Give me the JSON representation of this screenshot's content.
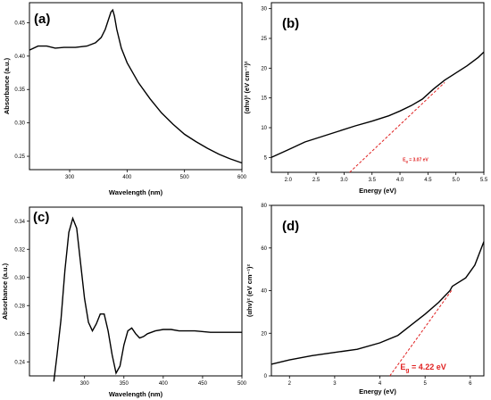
{
  "chart_data": [
    {
      "panel_label": "(a)",
      "type": "line",
      "xlabel": "Wavelength (nm)",
      "ylabel": "Absorbance (a.u.)",
      "xlim": [
        230,
        600
      ],
      "ylim": [
        0.23,
        0.48
      ],
      "xticks": [
        "300",
        "400",
        "500",
        "600"
      ],
      "yticks": [
        "0.25",
        "0.30",
        "0.35",
        "0.40",
        "0.45"
      ],
      "x": [
        230,
        245,
        260,
        275,
        290,
        310,
        330,
        345,
        355,
        362,
        368,
        372,
        375,
        378,
        382,
        390,
        400,
        420,
        440,
        460,
        480,
        500,
        520,
        540,
        560,
        580,
        600
      ],
      "y": [
        0.409,
        0.415,
        0.415,
        0.412,
        0.413,
        0.413,
        0.415,
        0.42,
        0.428,
        0.44,
        0.456,
        0.466,
        0.469,
        0.46,
        0.44,
        0.412,
        0.39,
        0.36,
        0.336,
        0.315,
        0.298,
        0.283,
        0.272,
        0.262,
        0.253,
        0.246,
        0.24
      ]
    },
    {
      "panel_label": "(b)",
      "type": "line",
      "xlabel": "Energy (eV)",
      "ylabel": "(αhν)² (eV cm⁻¹)²",
      "xlim": [
        1.7,
        5.5
      ],
      "ylim": [
        2.5,
        31
      ],
      "xticks": [
        "2.0",
        "2.5",
        "3.0",
        "3.5",
        "4.0",
        "4.5",
        "5.0",
        "5.5"
      ],
      "yticks": [
        "5",
        "10",
        "15",
        "20",
        "25",
        "30"
      ],
      "x": [
        1.7,
        2.0,
        2.3,
        2.6,
        2.9,
        3.2,
        3.5,
        3.8,
        4.0,
        4.2,
        4.4,
        4.6,
        4.8,
        5.0,
        5.2,
        5.4,
        5.5
      ],
      "y": [
        5.0,
        6.3,
        7.6,
        8.5,
        9.4,
        10.3,
        11.1,
        12.0,
        12.8,
        13.7,
        14.8,
        16.5,
        18.0,
        19.2,
        20.4,
        21.8,
        22.7
      ],
      "fit_line": {
        "x": [
          3.1,
          4.8
        ],
        "y": [
          2.5,
          17.6
        ]
      },
      "annotation": {
        "symbol": "E",
        "subscript": "g",
        "text": " = 3.07 eV"
      }
    },
    {
      "panel_label": "(c)",
      "type": "line",
      "xlabel": "Wavelength (nm)",
      "ylabel": "Absorbance (a.u.)",
      "xlim": [
        230,
        500
      ],
      "ylim": [
        0.23,
        0.35
      ],
      "xticks": [
        "300",
        "350",
        "400",
        "450",
        "500"
      ],
      "yticks": [
        "0.24",
        "0.26",
        "0.28",
        "0.30",
        "0.32",
        "0.34"
      ],
      "x": [
        261,
        265,
        270,
        275,
        280,
        285,
        290,
        295,
        300,
        305,
        310,
        315,
        320,
        325,
        330,
        335,
        340,
        345,
        350,
        355,
        360,
        365,
        370,
        375,
        380,
        390,
        400,
        410,
        420,
        440,
        460,
        480,
        500
      ],
      "y": [
        0.226,
        0.245,
        0.27,
        0.305,
        0.332,
        0.342,
        0.335,
        0.31,
        0.285,
        0.268,
        0.262,
        0.267,
        0.274,
        0.274,
        0.262,
        0.245,
        0.232,
        0.237,
        0.252,
        0.262,
        0.264,
        0.26,
        0.257,
        0.258,
        0.26,
        0.262,
        0.263,
        0.263,
        0.262,
        0.262,
        0.261,
        0.261,
        0.261
      ]
    },
    {
      "panel_label": "(d)",
      "type": "line",
      "xlabel": "Energy (eV)",
      "ylabel": "(αhν)² (eV cm⁻¹)²",
      "xlim": [
        1.6,
        6.3
      ],
      "ylim": [
        0,
        80
      ],
      "xticks": [
        "2",
        "3",
        "4",
        "5",
        "6"
      ],
      "yticks": [
        "0",
        "20",
        "40",
        "60",
        "80"
      ],
      "x": [
        1.6,
        2.0,
        2.5,
        3.0,
        3.5,
        4.0,
        4.4,
        4.7,
        5.0,
        5.3,
        5.55,
        5.6,
        5.9,
        6.1,
        6.3
      ],
      "y": [
        5.5,
        7.5,
        9.5,
        11.0,
        12.5,
        15.5,
        19.0,
        24.0,
        29.0,
        34.5,
        40.0,
        42.0,
        46.0,
        52.0,
        63.0
      ],
      "fit_line": {
        "x": [
          4.22,
          5.6
        ],
        "y": [
          0,
          40.5
        ]
      },
      "annotation": {
        "symbol": "E",
        "subscript": "g",
        "text": " = 4.22 eV"
      }
    }
  ]
}
